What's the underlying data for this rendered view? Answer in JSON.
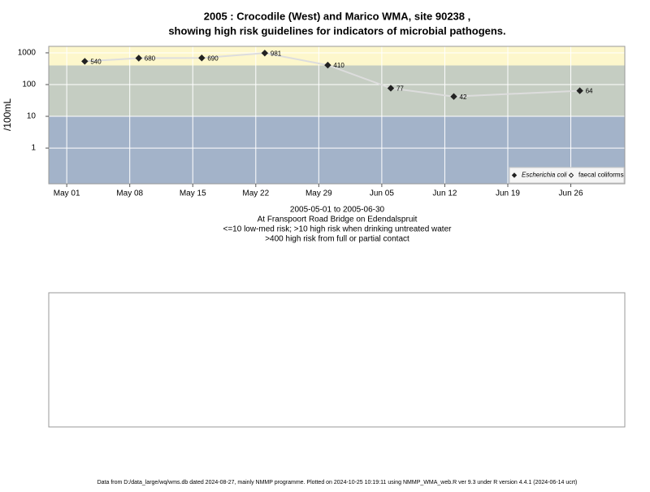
{
  "chart_data": {
    "type": "line",
    "title": "2005 : Crocodile (West) and Marico WMA, site 90238 ,",
    "title_line2": "showing high risk guidelines for indicators of microbial pathogens.",
    "y_label": "/100mL",
    "subtitle_lines": [
      "2005-05-01 to 2005-06-30",
      "At Franspoort Road Bridge on Edendalspruit",
      "<=10 low-med risk; >10 high risk when drinking untreated water",
      ">400 high risk from full or partial contact"
    ],
    "footer": "Data from D:/data_large/wq/wms.db dated 2024-08-27, mainly NMMP programme. Plotted on 2024-10-25 10:19:11 using NMMP_WMA_web.R ver 9.3 under R version 4.4.1 (2024-06-14 ucrt)",
    "x": [
      "2005-05-03",
      "2005-05-09",
      "2005-05-16",
      "2005-05-23",
      "2005-05-30",
      "2005-06-06",
      "2005-06-13",
      "2005-06-27"
    ],
    "series": [
      {
        "name": "Escherichia coli",
        "color": "#dddddd",
        "marker_color": "#222222",
        "values": [
          540,
          680,
          690,
          981,
          410,
          77,
          42,
          64
        ]
      },
      {
        "name": "faecal coliforms",
        "color": "#dddddd",
        "marker_color": "#222222",
        "values": [
          null,
          null,
          null,
          null,
          null,
          null,
          null,
          null
        ]
      }
    ],
    "xlim": [
      "2005-04-29",
      "2005-07-02"
    ],
    "xticks": [
      {
        "value": "2005-05-01",
        "label": "May 01"
      },
      {
        "value": "2005-05-08",
        "label": "May 08"
      },
      {
        "value": "2005-05-15",
        "label": "May 15"
      },
      {
        "value": "2005-05-22",
        "label": "May 22"
      },
      {
        "value": "2005-05-29",
        "label": "May 29"
      },
      {
        "value": "2005-06-05",
        "label": "Jun 05"
      },
      {
        "value": "2005-06-12",
        "label": "Jun 12"
      },
      {
        "value": "2005-06-19",
        "label": "Jun 19"
      },
      {
        "value": "2005-06-26",
        "label": "Jun 26"
      }
    ],
    "ylim": [
      0.075,
      1600
    ],
    "yticks": [
      1,
      10,
      100,
      1000
    ],
    "log_y": true,
    "grid": true,
    "thresholds": [
      10,
      400
    ],
    "band_colors": [
      "#a3b3c9",
      "#c5cdc2",
      "#fdf7cc"
    ],
    "legend_position": "bottom-right"
  }
}
